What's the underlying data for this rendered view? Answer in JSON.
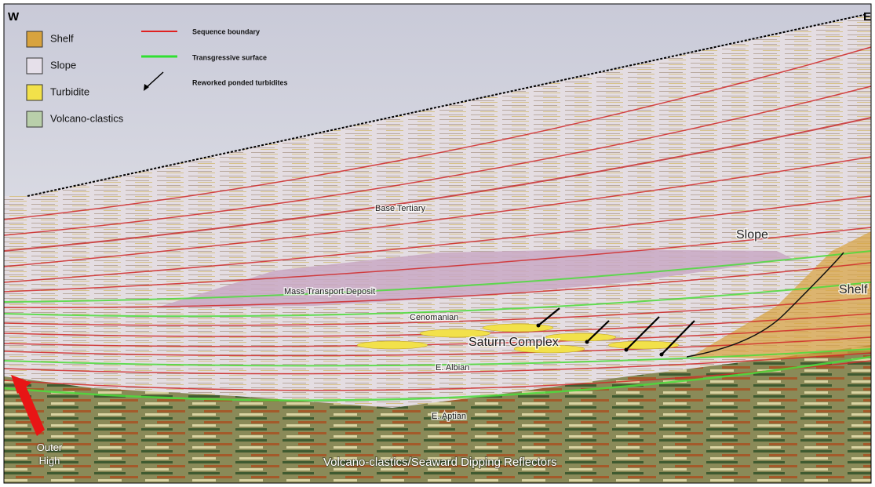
{
  "compass": {
    "west": "W",
    "east": "E"
  },
  "legend": {
    "facies": [
      "Shelf",
      "Slope",
      "Turbidite",
      "Volcano-clastics"
    ],
    "lines": [
      "Sequence boundary",
      "Transgressive surface",
      "Reworked ponded turbidites"
    ]
  },
  "labels": {
    "base_tertiary": "Base Tertiary",
    "slope": "Slope",
    "mass_transport": "Mass Transport Deposit",
    "shelf": "Shelf",
    "cenomanian": "Cenomanian",
    "saturn": "Saturn Complex",
    "albian": "E. Albian",
    "aptian": "E. Aptian",
    "outer_high": "Outer High",
    "volcano": "Volcano-clastics/Seaward Dipping Reflectors"
  }
}
